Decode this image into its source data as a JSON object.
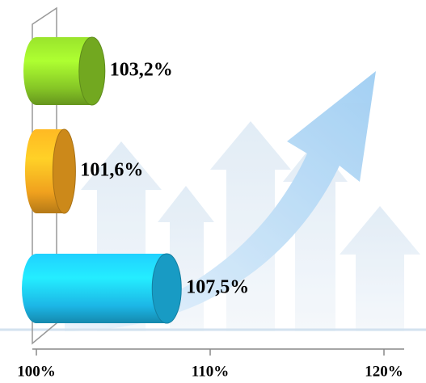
{
  "chart_data": {
    "type": "bar",
    "orientation": "horizontal",
    "categories": [
      null,
      null,
      null
    ],
    "values": [
      103.2,
      101.6,
      107.5
    ],
    "value_labels": [
      "103,2%",
      "101,6%",
      "107,5%"
    ],
    "colors": [
      "#86c626",
      "#f0a11e",
      "#1cb6e6"
    ],
    "xlim": [
      100,
      120
    ],
    "xticks": [
      {
        "value": 100,
        "label": "100%"
      },
      {
        "value": 110,
        "label": "110%"
      },
      {
        "value": 120,
        "label": "120%"
      }
    ]
  }
}
